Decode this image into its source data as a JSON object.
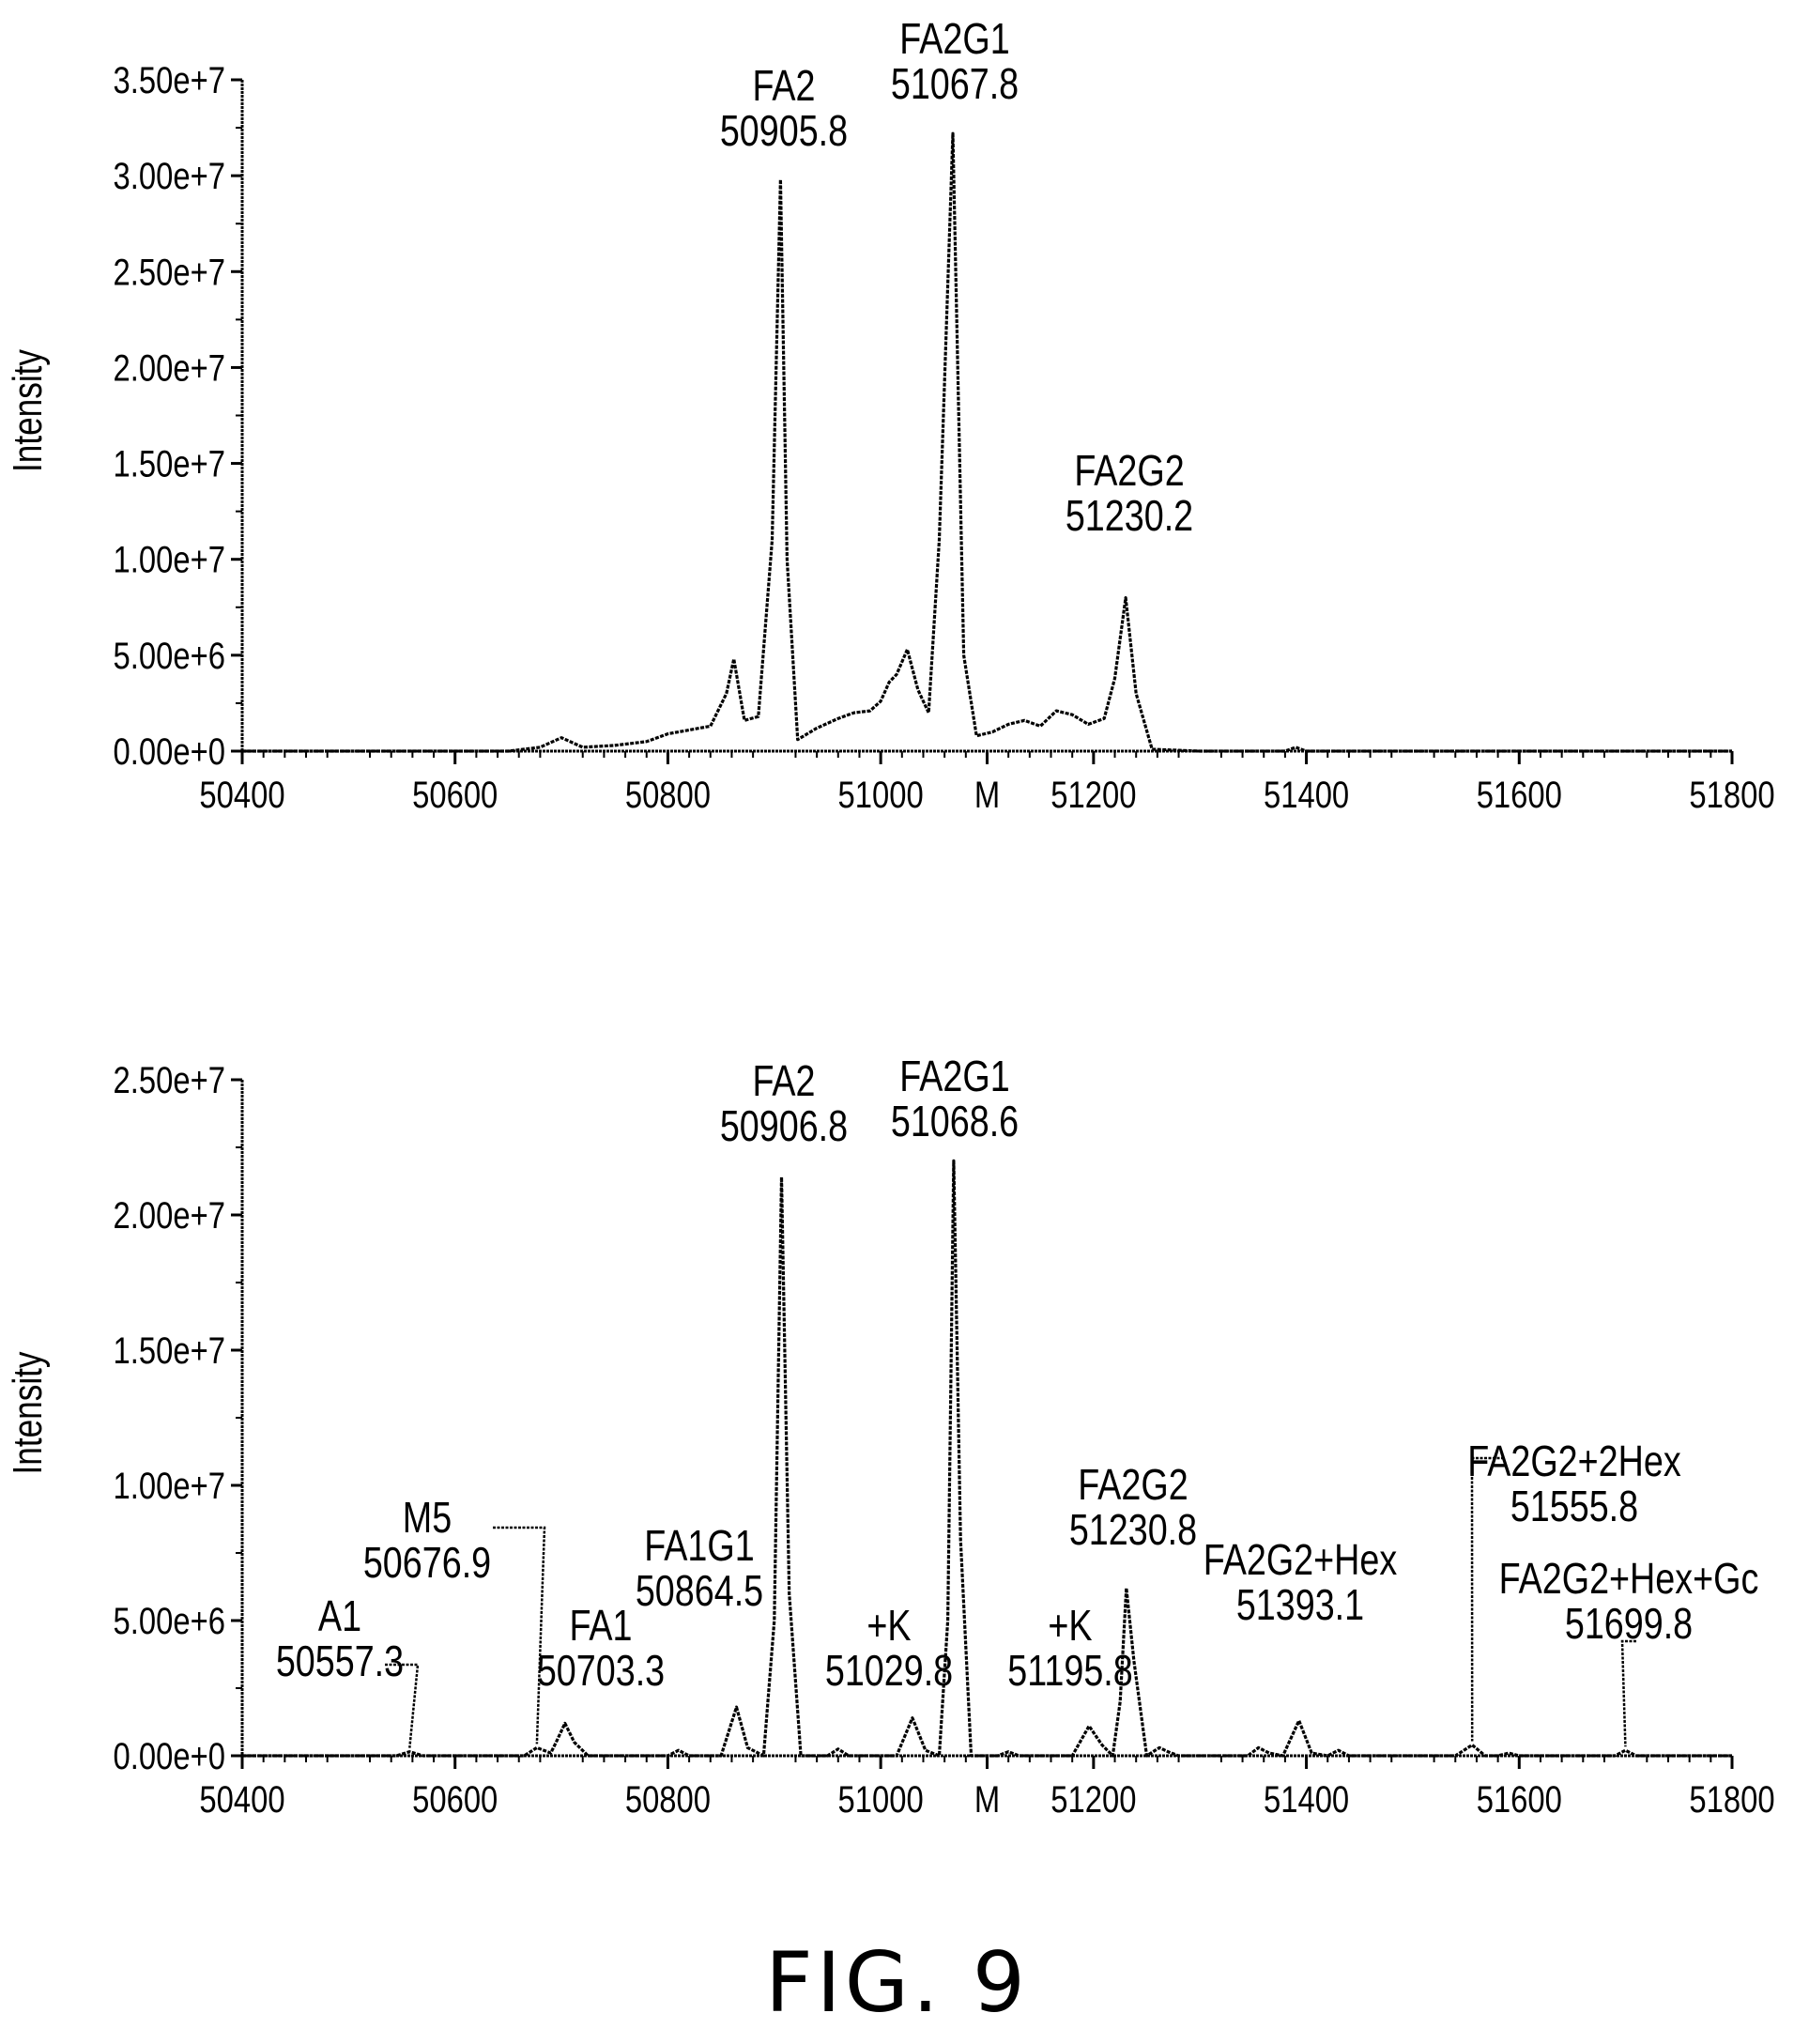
{
  "figure": {
    "caption": "FIG. 9"
  },
  "chart_data": [
    {
      "type": "line",
      "xlabel": "",
      "ylabel": "Intensity",
      "xlim": [
        50400,
        51800
      ],
      "ylim": [
        0,
        35000000
      ],
      "xticks": [
        {
          "value": 50400,
          "label": "50400"
        },
        {
          "value": 50600,
          "label": "50600"
        },
        {
          "value": 50800,
          "label": "50800"
        },
        {
          "value": 51000,
          "label": "51000"
        },
        {
          "value": 51100,
          "label": "M"
        },
        {
          "value": 51200,
          "label": "51200"
        },
        {
          "value": 51400,
          "label": "51400"
        },
        {
          "value": 51600,
          "label": "51600"
        },
        {
          "value": 51800,
          "label": "51800"
        }
      ],
      "yticks": [
        {
          "value": 0,
          "label": "0.00e+0"
        },
        {
          "value": 5000000,
          "label": "5.00e+6"
        },
        {
          "value": 10000000,
          "label": "1.00e+7"
        },
        {
          "value": 15000000,
          "label": "1.50e+7"
        },
        {
          "value": 20000000,
          "label": "2.00e+7"
        },
        {
          "value": 25000000,
          "label": "2.50e+7"
        },
        {
          "value": 30000000,
          "label": "3.00e+7"
        },
        {
          "value": 35000000,
          "label": "3.50e+7"
        }
      ],
      "series": [
        {
          "x": [
            50400,
            50650,
            50680,
            50700,
            50720,
            50750,
            50780,
            50800,
            50820,
            50840,
            50855,
            50862,
            50872,
            50885,
            50898,
            50905.8,
            50912,
            50922,
            50940,
            50960,
            50975,
            50990,
            51000,
            51008,
            51015,
            51025,
            51035,
            51045,
            51055,
            51067.8,
            51078,
            51090,
            51105,
            51120,
            51135,
            51150,
            51165,
            51180,
            51195,
            51210,
            51220,
            51230.2,
            51240,
            51255,
            51300,
            51380,
            51390,
            51400,
            51800
          ],
          "y": [
            0,
            0,
            200000,
            700000,
            200000,
            300000,
            500000,
            900000,
            1100000,
            1300000,
            3000000,
            4800000,
            1600000,
            1800000,
            11000000,
            29800000,
            10000000,
            600000,
            1200000,
            1700000,
            2000000,
            2100000,
            2600000,
            3600000,
            4000000,
            5300000,
            3200000,
            2000000,
            11000000,
            32200000,
            5000000,
            800000,
            1000000,
            1400000,
            1600000,
            1300000,
            2100000,
            1900000,
            1400000,
            1700000,
            3800000,
            8000000,
            3000000,
            100000,
            0,
            0,
            200000,
            0,
            0
          ]
        }
      ],
      "annotations": [
        {
          "lines": [
            "FA2",
            "50905.8"
          ],
          "x": 50905.8,
          "y": 29800000
        },
        {
          "lines": [
            "FA2G1",
            "51067.8"
          ],
          "x": 51067.8,
          "y": 32200000
        },
        {
          "lines": [
            "FA2G2",
            "51230.2"
          ],
          "x": 51230.2,
          "y": 8000000
        }
      ],
      "grid": false,
      "legend": "none"
    },
    {
      "type": "line",
      "xlabel": "",
      "ylabel": "Intensity",
      "xlim": [
        50400,
        51800
      ],
      "ylim": [
        0,
        25000000
      ],
      "xticks": [
        {
          "value": 50400,
          "label": "50400"
        },
        {
          "value": 50600,
          "label": "50600"
        },
        {
          "value": 50800,
          "label": "50800"
        },
        {
          "value": 51000,
          "label": "51000"
        },
        {
          "value": 51100,
          "label": "M"
        },
        {
          "value": 51200,
          "label": "51200"
        },
        {
          "value": 51400,
          "label": "51400"
        },
        {
          "value": 51600,
          "label": "51600"
        },
        {
          "value": 51800,
          "label": "51800"
        }
      ],
      "yticks": [
        {
          "value": 0,
          "label": "0.00e+0"
        },
        {
          "value": 5000000,
          "label": "5.00e+6"
        },
        {
          "value": 10000000,
          "label": "1.00e+7"
        },
        {
          "value": 15000000,
          "label": "1.50e+7"
        },
        {
          "value": 20000000,
          "label": "2.00e+7"
        },
        {
          "value": 25000000,
          "label": "2.50e+7"
        }
      ],
      "series": [
        {
          "x": [
            50400,
            50545,
            50557.3,
            50570,
            50665,
            50676.9,
            50690,
            50695,
            50703.3,
            50712,
            50725,
            50800,
            50810,
            50820,
            50850,
            50864.5,
            50875,
            50890,
            50900,
            50906.8,
            50914,
            50925,
            50950,
            50960,
            50970,
            51015,
            51029.8,
            51042,
            51055,
            51063,
            51068.6,
            51075,
            51085,
            51110,
            51120,
            51130,
            51180,
            51195.8,
            51208,
            51218,
            51225,
            51230.8,
            51238,
            51250,
            51262,
            51270,
            51280,
            51345,
            51355,
            51365,
            51378,
            51393.1,
            51405,
            51420,
            51430,
            51440,
            51540,
            51555.8,
            51568,
            51580,
            51590,
            51600,
            51690,
            51699.8,
            51710,
            51800
          ],
          "y": [
            0,
            0,
            150000,
            0,
            0,
            300000,
            100000,
            500000,
            1200000,
            500000,
            0,
            0,
            200000,
            0,
            0,
            1800000,
            300000,
            0,
            5000000,
            21400000,
            6000000,
            0,
            0,
            250000,
            0,
            0,
            1400000,
            200000,
            0,
            5000000,
            22000000,
            8000000,
            0,
            0,
            150000,
            0,
            0,
            1100000,
            400000,
            0,
            2000000,
            6200000,
            3500000,
            0,
            300000,
            150000,
            0,
            0,
            300000,
            100000,
            0,
            1300000,
            100000,
            0,
            200000,
            0,
            0,
            400000,
            0,
            0,
            100000,
            0,
            0,
            200000,
            0,
            0
          ]
        }
      ],
      "annotations": [
        {
          "lines": [
            "A1",
            "50557.3"
          ],
          "x": 50557.3,
          "y": 150000
        },
        {
          "lines": [
            "M5",
            "50676.9"
          ],
          "x": 50676.9,
          "y": 300000
        },
        {
          "lines": [
            "FA1",
            "50703.3"
          ],
          "x": 50703.3,
          "y": 1200000
        },
        {
          "lines": [
            "FA1G1",
            "50864.5"
          ],
          "x": 50864.5,
          "y": 1800000
        },
        {
          "lines": [
            "FA2",
            "50906.8"
          ],
          "x": 50906.8,
          "y": 21400000
        },
        {
          "lines": [
            "+K",
            "51029.8"
          ],
          "x": 51029.8,
          "y": 1400000
        },
        {
          "lines": [
            "FA2G1",
            "51068.6"
          ],
          "x": 51068.6,
          "y": 22000000
        },
        {
          "lines": [
            "+K",
            "51195.8"
          ],
          "x": 51195.8,
          "y": 1100000
        },
        {
          "lines": [
            "FA2G2",
            "51230.8"
          ],
          "x": 51230.8,
          "y": 6200000
        },
        {
          "lines": [
            "FA2G2+Hex",
            "51393.1"
          ],
          "x": 51393.1,
          "y": 1300000
        },
        {
          "lines": [
            "FA2G2+2Hex",
            "51555.8"
          ],
          "x": 51555.8,
          "y": 400000
        },
        {
          "lines": [
            "FA2G2+Hex+Gc",
            "51699.8"
          ],
          "x": 51699.8,
          "y": 200000
        }
      ],
      "grid": false,
      "legend": "none"
    }
  ]
}
